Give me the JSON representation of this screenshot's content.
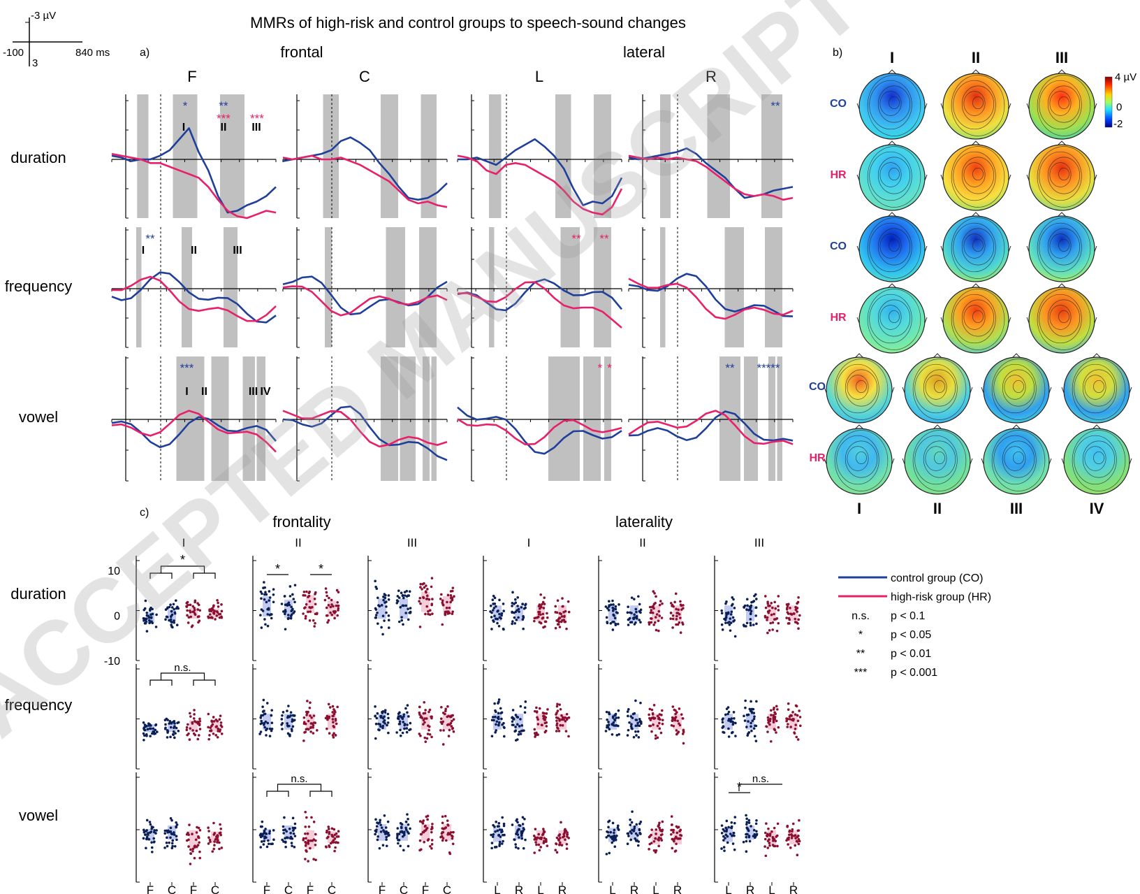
{
  "title": "MMRs of high-risk and control groups to speech-sound changes",
  "scale_bar": {
    "y_top": "-3 µV",
    "y_bottom": "3",
    "x_left": "-100",
    "x_right": "840 ms"
  },
  "panel_labels": {
    "a": "a)",
    "b": "b)",
    "c": "c)"
  },
  "panel_a": {
    "group_headers": [
      "frontal",
      "lateral"
    ],
    "columns": [
      "F",
      "C",
      "L",
      "R"
    ],
    "rows": [
      "duration",
      "frequency",
      "vowel"
    ]
  },
  "panel_b": {
    "columns_top": [
      "I",
      "II",
      "III"
    ],
    "columns_bottom": [
      "I",
      "II",
      "III",
      "IV"
    ],
    "row_labels": [
      "CO",
      "HR",
      "CO",
      "HR",
      "CO",
      "HR"
    ],
    "colorbar": {
      "top": "4 µV",
      "mid": "0",
      "bottom": "-2"
    }
  },
  "panel_c": {
    "group_headers": [
      "frontality",
      "laterality"
    ],
    "columns": [
      "I",
      "II",
      "III",
      "I",
      "II",
      "III"
    ],
    "rows": [
      "duration",
      "frequency",
      "vowel"
    ],
    "yticks": [
      "10",
      "0",
      "-10"
    ],
    "xticks_frontality": [
      "F",
      "C",
      "F",
      "C"
    ],
    "xticks_laterality": [
      "L",
      "R",
      "L",
      "R"
    ]
  },
  "legend": {
    "lines": [
      {
        "label": "control group (CO)",
        "color": "#1f3f9a"
      },
      {
        "label": "high-risk group (HR)",
        "color": "#e8206a"
      }
    ],
    "significance": [
      {
        "symbol": "n.s.",
        "label": "p < 0.1"
      },
      {
        "symbol": "*",
        "label": "p < 0.05"
      },
      {
        "symbol": "**",
        "label": "p < 0.01"
      },
      {
        "symbol": "***",
        "label": "p < 0.001"
      }
    ]
  },
  "watermark": "ACCEPTED MANUSCRIPT",
  "colors": {
    "control": "#1f3f9a",
    "highrisk": "#e8206a",
    "shade": "#c0c0c0"
  },
  "chart_data": [
    {
      "type": "line",
      "title": "MMRs of high-risk and control groups to speech-sound changes",
      "x_range_ms": [
        -100,
        840
      ],
      "y_scale_uV": [
        -3,
        3
      ],
      "series_names": [
        "control group (CO)",
        "high-risk group (HR)"
      ],
      "panels": [
        {
          "row": "duration",
          "col": "F",
          "windows": [
            [
              45,
              110
            ],
            [
              250,
              390
            ],
            [
              520,
              660
            ]
          ],
          "sig": [
            {
              "text": "*",
              "color": "#1f3f9a"
            },
            {
              "text": "**",
              "color": "#1f3f9a"
            },
            {
              "text": "***",
              "color": "#e8206a"
            },
            {
              "text": "***",
              "color": "#e8206a"
            }
          ],
          "labels": [
            "I",
            "II",
            "III"
          ],
          "co": [
            0.2,
            0.1,
            -0.1,
            0.0,
            0.0,
            0.2,
            0.5,
            1.1,
            1.7,
            0.4,
            -0.6,
            -2.0,
            -2.9,
            -2.8,
            -2.5,
            -2.3,
            -2.0,
            -1.5
          ],
          "hr": [
            0.3,
            0.2,
            0.1,
            0.0,
            -0.2,
            -0.2,
            -0.4,
            -0.6,
            -0.8,
            -1.0,
            -1.5,
            -2.2,
            -2.8,
            -3.1,
            -3.2,
            -3.0,
            -2.8,
            -2.9
          ]
        },
        {
          "row": "duration",
          "col": "C",
          "windows": [
            [
              130,
              220
            ],
            [
              460,
              560
            ],
            [
              690,
              780
            ]
          ],
          "sig": [],
          "labels": [],
          "co": [
            -0.1,
            0.0,
            0.1,
            0.2,
            0.3,
            0.5,
            1.0,
            1.2,
            0.9,
            0.5,
            -0.2,
            -0.8,
            -1.5,
            -2.1,
            -2.2,
            -2.1,
            -1.8,
            -1.3
          ],
          "hr": [
            0.1,
            0.0,
            0.1,
            0.2,
            0.0,
            0.0,
            0.1,
            -0.1,
            -0.3,
            -0.6,
            -0.9,
            -1.2,
            -1.7,
            -2.2,
            -2.4,
            -2.3,
            -2.5,
            -2.6
          ]
        },
        {
          "row": "duration",
          "col": "L",
          "windows": [
            [
              80,
              150
            ],
            [
              460,
              550
            ],
            [
              680,
              780
            ]
          ],
          "sig": [],
          "labels": [],
          "co": [
            0.0,
            0.0,
            0.1,
            -0.1,
            -0.3,
            0.1,
            0.5,
            0.8,
            1.1,
            0.7,
            0.2,
            -0.5,
            -1.6,
            -2.5,
            -2.3,
            -2.4,
            -2.0,
            -1.0
          ],
          "hr": [
            0.2,
            0.1,
            -0.1,
            -0.6,
            -0.8,
            -0.3,
            -0.2,
            -0.3,
            -0.6,
            -0.9,
            -1.2,
            -1.7,
            -2.3,
            -2.7,
            -2.9,
            -3.0,
            -2.6,
            -1.6
          ]
        },
        {
          "row": "duration",
          "col": "R",
          "windows": [
            [
              80,
              140
            ],
            [
              350,
              480
            ],
            [
              660,
              780
            ]
          ],
          "sig": [
            {
              "text": "**",
              "color": "#1f3f9a"
            }
          ],
          "labels": [],
          "co": [
            0.1,
            0.0,
            0.1,
            0.2,
            0.3,
            0.4,
            0.6,
            0.3,
            -0.2,
            -0.6,
            -1.0,
            -1.6,
            -2.1,
            -2.0,
            -1.9,
            -1.7,
            -1.6,
            -1.5
          ],
          "hr": [
            0.2,
            0.1,
            0.0,
            0.1,
            0.0,
            0.1,
            0.0,
            -0.1,
            -0.4,
            -0.8,
            -1.2,
            -1.6,
            -1.9,
            -2.0,
            -1.9,
            -2.0,
            -2.2,
            -2.1
          ]
        }
      ]
    },
    {
      "type": "scatter",
      "title": "",
      "ylim": [
        -10,
        14
      ],
      "yticks": [
        10,
        0,
        -10
      ],
      "series_names": [
        "control group (CO)",
        "high-risk group (HR)"
      ],
      "panels": [
        {
          "row": "duration",
          "col": "I (frontality)",
          "medians": [
            -0.5,
            0.0,
            0.5,
            0.5
          ],
          "spread": [
            2.5,
            2.5,
            2.5,
            2.0
          ],
          "brackets": [
            {
              "text": "*",
              "type": "group"
            }
          ]
        },
        {
          "row": "duration",
          "col": "II (frontality)",
          "medians": [
            2.0,
            1.5,
            2.5,
            1.5
          ],
          "spread": [
            4.5,
            4.0,
            4.0,
            3.5
          ],
          "brackets": [
            {
              "text": "*",
              "type": "pair-left"
            },
            {
              "text": "*",
              "type": "pair-right"
            }
          ]
        },
        {
          "row": "duration",
          "col": "III (frontality)",
          "medians": [
            1.5,
            1.5,
            3.0,
            2.5
          ],
          "spread": [
            4.5,
            4.5,
            4.5,
            3.5
          ],
          "brackets": []
        },
        {
          "row": "frequency",
          "col": "I (frontality)",
          "medians": [
            -1.0,
            -0.8,
            -0.5,
            -0.5
          ],
          "spread": [
            1.8,
            2.0,
            2.5,
            2.5
          ],
          "brackets": [
            {
              "text": "n.s.",
              "type": "group"
            }
          ]
        },
        {
          "row": "vowel",
          "col": "II (frontality)",
          "medians": [
            0.0,
            0.5,
            -1.0,
            -0.5
          ],
          "spread": [
            2.5,
            3.0,
            4.0,
            2.5
          ],
          "brackets": [
            {
              "text": "n.s.",
              "type": "group"
            }
          ]
        },
        {
          "row": "vowel",
          "col": "III (laterality)",
          "medians": [
            0.0,
            0.5,
            -0.5,
            -0.5
          ],
          "spread": [
            3.0,
            3.0,
            3.0,
            3.0
          ],
          "brackets": [
            {
              "text": "*",
              "type": "pair-left"
            },
            {
              "text": "n.s.",
              "type": "group-right"
            }
          ]
        }
      ]
    }
  ]
}
